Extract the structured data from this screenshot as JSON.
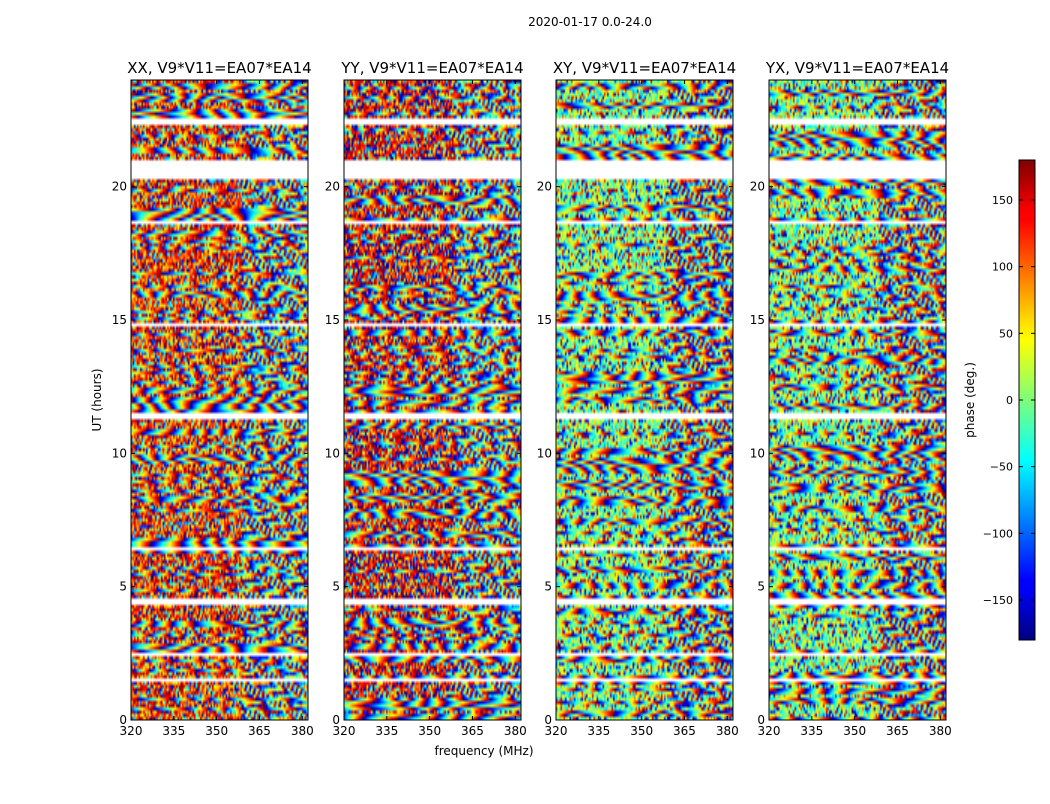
{
  "suptitle": "2020-01-17 0.0-24.0",
  "chart_data": {
    "type": "heatmap",
    "colormap": "jet",
    "xlabel": "frequency (MHz)",
    "ylabel": "UT (hours)",
    "xlim": [
      320,
      382
    ],
    "ylim": [
      0,
      24
    ],
    "xticks": [
      320,
      335,
      350,
      365,
      380
    ],
    "yticks": [
      0,
      5,
      10,
      15,
      20
    ],
    "colorbar": {
      "label": "phase (deg.)",
      "range": [
        -180,
        180
      ],
      "ticks": [
        -150,
        -100,
        -50,
        0,
        50,
        100,
        150
      ]
    },
    "gaps_hours": [
      [
        1.45,
        1.62
      ],
      [
        2.42,
        2.58
      ],
      [
        4.42,
        4.6
      ],
      [
        6.38,
        6.55
      ],
      [
        11.38,
        11.55
      ],
      [
        14.82,
        14.98
      ],
      [
        18.62,
        18.8
      ],
      [
        20.3,
        21.05
      ],
      [
        22.4,
        22.58
      ]
    ],
    "panels": [
      {
        "title": "XX, V9*V11=EA07*EA14",
        "dominant_phase_deg": 120
      },
      {
        "title": "YY, V9*V11=EA07*EA14",
        "dominant_phase_deg": 140
      },
      {
        "title": "XY, V9*V11=EA07*EA14",
        "dominant_phase_deg": 0
      },
      {
        "title": "YX, V9*V11=EA07*EA14",
        "dominant_phase_deg": 0
      }
    ]
  }
}
